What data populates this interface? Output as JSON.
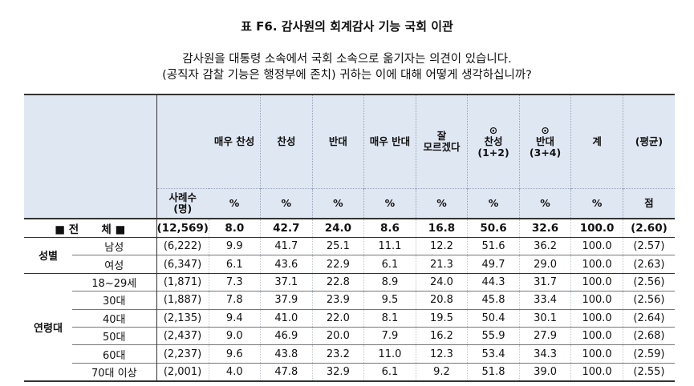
{
  "title": "표 F6. 감사원의 회계감사 기능 국회 이관",
  "question_line1": "감사원을 대통령 소속에서 국회 소속으로 옮기자는 의견이 있습니다.",
  "question_line2": "(공직자 감찰 기능은 행정부에 존치) 귀하는 이에 대해 어떻게 생각하십니까?",
  "headers": {
    "cols": [
      "매우 찬성",
      "찬성",
      "반대",
      "매우 반대",
      "잘\n모르겠다",
      "⊙\n찬성\n(1+2)",
      "⊙\n반대\n(3+4)",
      "계",
      "(평균)"
    ],
    "n_label": "사례수\n(명)",
    "units": [
      "%",
      "%",
      "%",
      "%",
      "%",
      "%",
      "%",
      "%",
      "점"
    ]
  },
  "total": {
    "label": "■ 전      체 ■",
    "n": "(12,569)",
    "values": [
      "8.0",
      "42.7",
      "24.0",
      "8.6",
      "16.8",
      "50.6",
      "32.6",
      "100.0",
      "(2.60)"
    ]
  },
  "groups": [
    {
      "category": "성별",
      "rows": [
        {
          "sub": "남성",
          "n": "(6,222)",
          "values": [
            "9.9",
            "41.7",
            "25.1",
            "11.1",
            "12.2",
            "51.6",
            "36.2",
            "100.0",
            "(2.57)"
          ]
        },
        {
          "sub": "여성",
          "n": "(6,347)",
          "values": [
            "6.1",
            "43.6",
            "22.9",
            "6.1",
            "21.3",
            "49.7",
            "29.0",
            "100.0",
            "(2.63)"
          ]
        }
      ]
    },
    {
      "category": "연령대",
      "rows": [
        {
          "sub": "18~29세",
          "n": "(1,871)",
          "values": [
            "7.3",
            "37.1",
            "22.8",
            "8.9",
            "24.0",
            "44.3",
            "31.7",
            "100.0",
            "(2.56)"
          ]
        },
        {
          "sub": "30대",
          "n": "(1,887)",
          "values": [
            "7.8",
            "37.9",
            "23.9",
            "9.5",
            "20.8",
            "45.8",
            "33.4",
            "100.0",
            "(2.56)"
          ]
        },
        {
          "sub": "40대",
          "n": "(2,135)",
          "values": [
            "9.4",
            "41.0",
            "22.0",
            "8.1",
            "19.5",
            "50.4",
            "30.1",
            "100.0",
            "(2.64)"
          ]
        },
        {
          "sub": "50대",
          "n": "(2,437)",
          "values": [
            "9.0",
            "46.9",
            "20.0",
            "7.9",
            "16.2",
            "55.9",
            "27.9",
            "100.0",
            "(2.68)"
          ]
        },
        {
          "sub": "60대",
          "n": "(2,237)",
          "values": [
            "9.6",
            "43.8",
            "23.2",
            "11.0",
            "12.3",
            "53.4",
            "34.3",
            "100.0",
            "(2.59)"
          ]
        },
        {
          "sub": "70대 이상",
          "n": "(2,001)",
          "values": [
            "4.0",
            "47.8",
            "32.9",
            "6.1",
            "9.2",
            "51.8",
            "39.0",
            "100.0",
            "(2.55)"
          ]
        }
      ]
    }
  ]
}
